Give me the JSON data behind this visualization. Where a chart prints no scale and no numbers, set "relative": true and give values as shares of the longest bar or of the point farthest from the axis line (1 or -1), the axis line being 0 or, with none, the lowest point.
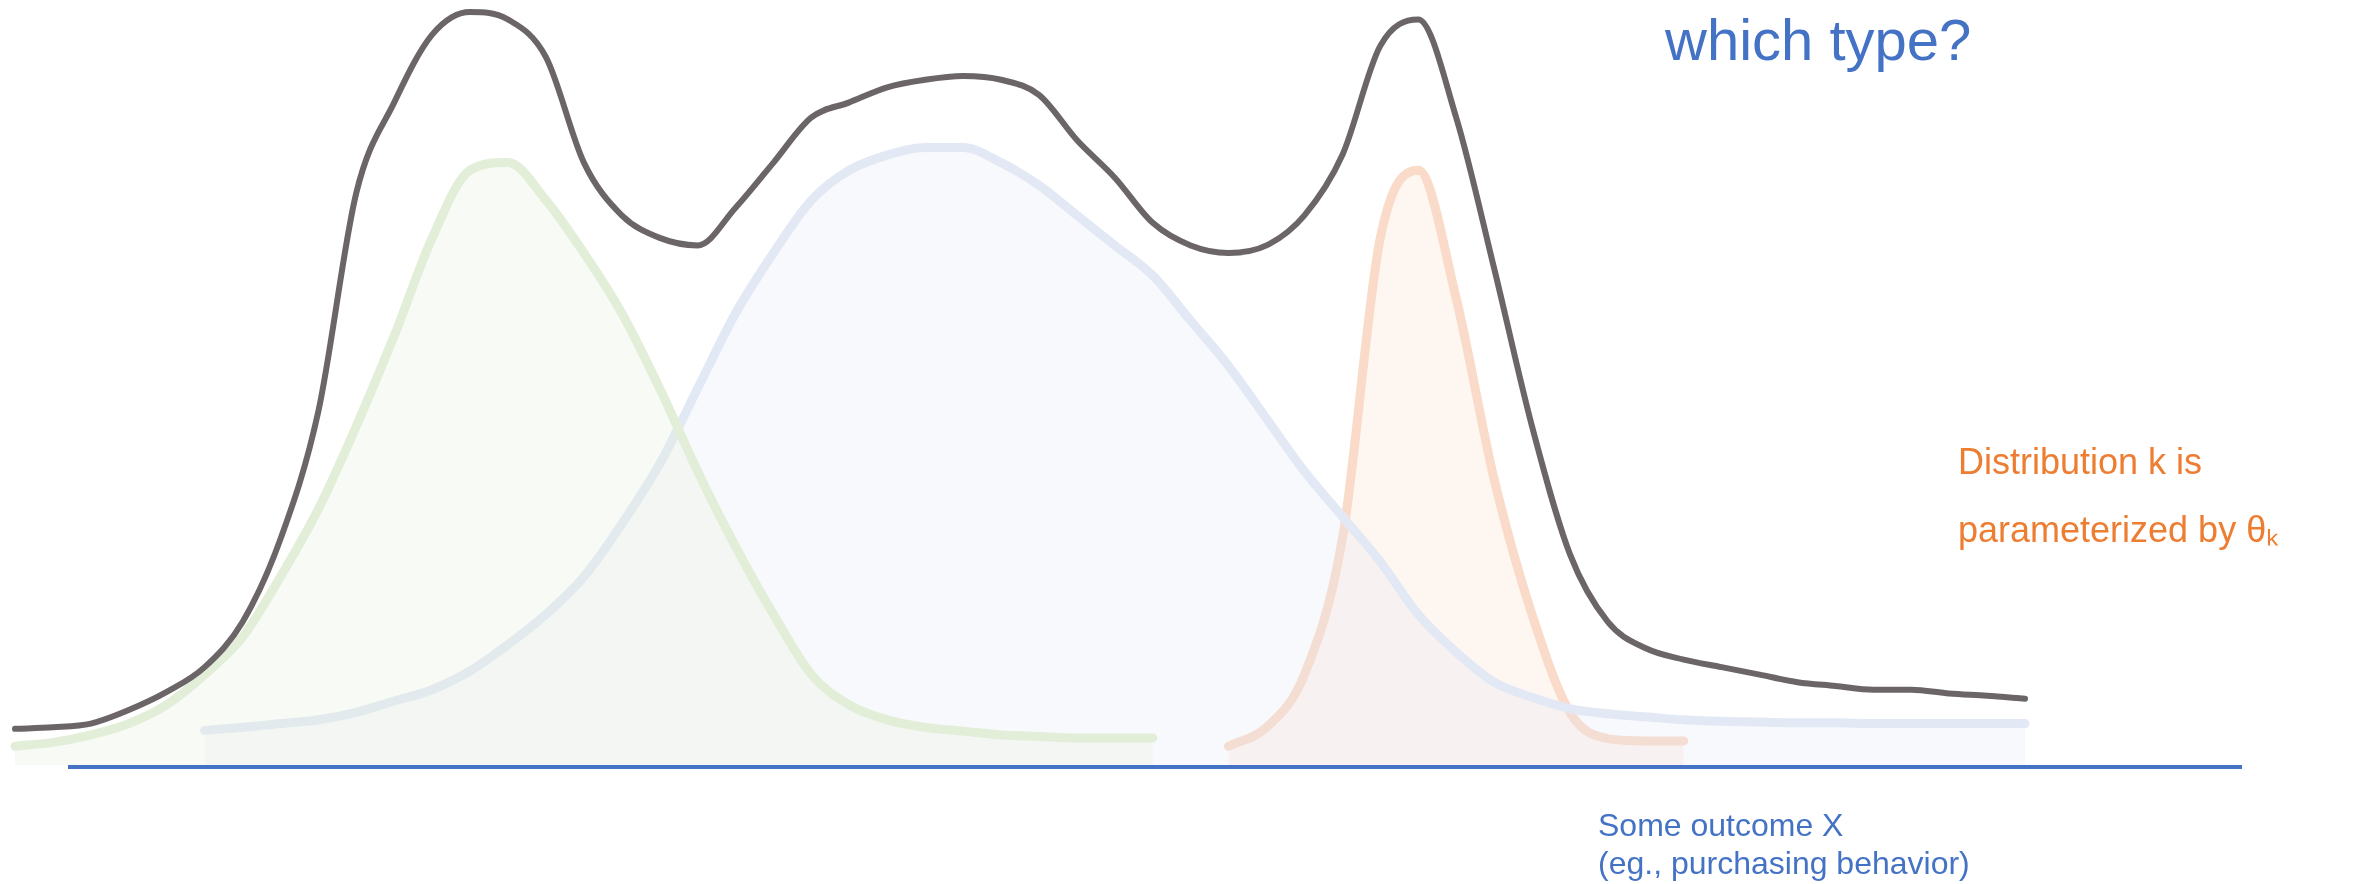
{
  "chart_data": {
    "type": "area",
    "relative": true,
    "title": "which type?",
    "xlabel": "Some outcome X\n(eg., purchasing behavior)",
    "annotations": [
      "Distribution k is\nparameterized by θₖ"
    ],
    "grid": false,
    "legend": false,
    "tick_labels": false,
    "categories": [
      null,
      null,
      null,
      null,
      null,
      null,
      null,
      null,
      null,
      null,
      null,
      null,
      null,
      null,
      null,
      null,
      null,
      null,
      null,
      null,
      null,
      null,
      null,
      null,
      null,
      null,
      null,
      null,
      null,
      null,
      null,
      null,
      null,
      null,
      null,
      null,
      null,
      null,
      null,
      null,
      null,
      null,
      null,
      null,
      null,
      null,
      null,
      null,
      null,
      null,
      null,
      null,
      null,
      null
    ],
    "series": [
      {
        "color": "#e2eed8",
        "values": [
          0.025,
          0.03,
          0.04,
          0.055,
          0.08,
          0.12,
          0.17,
          0.25,
          0.34,
          0.45,
          0.57,
          0.7,
          0.79,
          0.8,
          0.75,
          0.68,
          0.6,
          0.5,
          0.39,
          0.29,
          0.2,
          0.12,
          0.08,
          0.06,
          0.05,
          0.045,
          0.04,
          0.038,
          0.036,
          0.036,
          0.036,
          null,
          null,
          null,
          null,
          null,
          null,
          null,
          null,
          null,
          null,
          null,
          null,
          null,
          null,
          null,
          null,
          null,
          null,
          null,
          null,
          null,
          null,
          null
        ]
      },
      {
        "color": "#e2e9f5",
        "values": [
          null,
          null,
          null,
          null,
          null,
          0.046,
          0.05,
          0.055,
          0.06,
          0.07,
          0.085,
          0.1,
          0.125,
          0.16,
          0.2,
          0.25,
          0.32,
          0.4,
          0.5,
          0.6,
          0.68,
          0.75,
          0.79,
          0.81,
          0.82,
          0.82,
          0.8,
          0.77,
          0.73,
          0.69,
          0.65,
          0.59,
          0.53,
          0.46,
          0.39,
          0.33,
          0.27,
          0.2,
          0.15,
          0.11,
          0.09,
          0.075,
          0.068,
          0.064,
          0.06,
          0.058,
          0.057,
          0.056,
          0.056,
          0.055,
          0.055,
          0.055,
          0.055,
          0.055
        ]
      },
      {
        "color": "#fadac8",
        "values": [
          null,
          null,
          null,
          null,
          null,
          null,
          null,
          null,
          null,
          null,
          null,
          null,
          null,
          null,
          null,
          null,
          null,
          null,
          null,
          null,
          null,
          null,
          null,
          null,
          null,
          null,
          null,
          null,
          null,
          null,
          null,
          null,
          0.025,
          0.05,
          0.12,
          0.3,
          0.7,
          0.79,
          0.62,
          0.38,
          0.2,
          0.07,
          0.035,
          0.032,
          0.032,
          null,
          null,
          null,
          null,
          null,
          null,
          null,
          null,
          null
        ]
      },
      {
        "type": "line",
        "color": "#6b6567",
        "values": [
          0.048,
          0.05,
          0.055,
          0.073,
          0.097,
          0.13,
          0.19,
          0.3,
          0.47,
          0.76,
          0.88,
          0.97,
          1.0,
          0.99,
          0.94,
          0.8,
          0.73,
          0.7,
          0.69,
          0.74,
          0.8,
          0.86,
          0.88,
          0.9,
          0.91,
          0.915,
          0.91,
          0.89,
          0.83,
          0.78,
          0.72,
          0.69,
          0.68,
          0.69,
          0.73,
          0.81,
          0.955,
          0.99,
          0.86,
          0.66,
          0.45,
          0.28,
          0.19,
          0.155,
          0.14,
          0.13,
          0.12,
          0.11,
          0.105,
          0.1,
          0.1,
          0.095,
          0.092,
          0.088
        ]
      }
    ]
  }
}
